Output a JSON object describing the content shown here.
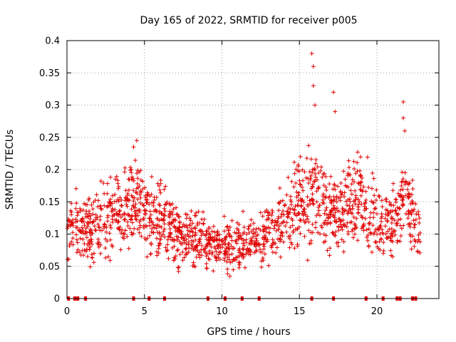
{
  "chart_data": {
    "type": "scatter",
    "title": "Day 165 of 2022, SRMTID for receiver p005",
    "xlabel": "GPS time / hours",
    "ylabel": "SRMTID / TECUs",
    "xlim": [
      0,
      24
    ],
    "ylim": [
      0,
      0.4
    ],
    "x_ticks": [
      0,
      5,
      10,
      15,
      20
    ],
    "x_tick_labels": [
      "0",
      "5",
      "10",
      "15",
      "20"
    ],
    "y_ticks": [
      0,
      0.05,
      0.1,
      0.15,
      0.2,
      0.25,
      0.3,
      0.35,
      0.4
    ],
    "y_tick_labels": [
      "0",
      "0.05",
      "0.1",
      "0.15",
      "0.2",
      "0.25",
      "0.3",
      "0.35",
      "0.4"
    ],
    "grid": true,
    "marker": "+",
    "color": "#e00000",
    "trend_points": [
      {
        "x": 0.0,
        "y": 0.12
      },
      {
        "x": 1.0,
        "y": 0.1
      },
      {
        "x": 2.0,
        "y": 0.12
      },
      {
        "x": 3.0,
        "y": 0.13
      },
      {
        "x": 4.0,
        "y": 0.14
      },
      {
        "x": 4.5,
        "y": 0.17
      },
      {
        "x": 5.0,
        "y": 0.13
      },
      {
        "x": 6.0,
        "y": 0.12
      },
      {
        "x": 7.0,
        "y": 0.1
      },
      {
        "x": 8.0,
        "y": 0.09
      },
      {
        "x": 9.0,
        "y": 0.09
      },
      {
        "x": 10.0,
        "y": 0.08
      },
      {
        "x": 11.0,
        "y": 0.085
      },
      {
        "x": 12.0,
        "y": 0.09
      },
      {
        "x": 13.0,
        "y": 0.1
      },
      {
        "x": 14.0,
        "y": 0.12
      },
      {
        "x": 15.0,
        "y": 0.15
      },
      {
        "x": 16.0,
        "y": 0.16
      },
      {
        "x": 17.0,
        "y": 0.13
      },
      {
        "x": 18.0,
        "y": 0.14
      },
      {
        "x": 18.7,
        "y": 0.16
      },
      {
        "x": 19.5,
        "y": 0.13
      },
      {
        "x": 20.0,
        "y": 0.12
      },
      {
        "x": 21.0,
        "y": 0.11
      },
      {
        "x": 21.8,
        "y": 0.16
      },
      {
        "x": 22.5,
        "y": 0.11
      },
      {
        "x": 22.8,
        "y": 0.09
      }
    ],
    "spikes": [
      {
        "x": 15.8,
        "y": 0.38
      },
      {
        "x": 15.9,
        "y": 0.36
      },
      {
        "x": 15.9,
        "y": 0.33
      },
      {
        "x": 16.0,
        "y": 0.3
      },
      {
        "x": 17.2,
        "y": 0.32
      },
      {
        "x": 17.3,
        "y": 0.29
      },
      {
        "x": 21.7,
        "y": 0.305
      },
      {
        "x": 21.7,
        "y": 0.28
      },
      {
        "x": 21.8,
        "y": 0.26
      },
      {
        "x": 4.5,
        "y": 0.245
      },
      {
        "x": 4.3,
        "y": 0.235
      }
    ],
    "zero_points_x": [
      0.1,
      0.5,
      0.7,
      1.2,
      4.3,
      5.3,
      6.3,
      9.1,
      10.2,
      11.3,
      12.4,
      15.8,
      17.2,
      19.3,
      20.4,
      21.3,
      21.5,
      22.3,
      22.5
    ]
  }
}
